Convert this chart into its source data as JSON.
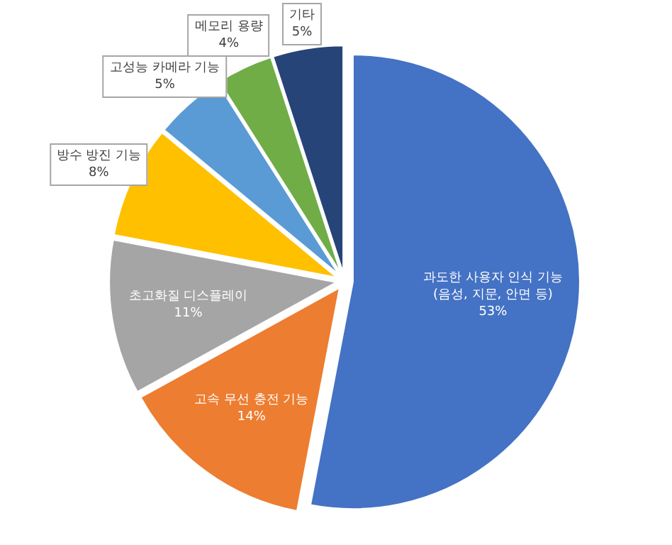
{
  "chart_data": {
    "type": "pie",
    "categories": [
      "과도한 사용자 인식 기능(음성, 지문, 안면 등)",
      "고속 무선 충전 기능",
      "초고화질 디스플레이",
      "방수 방진 기능",
      "고성능 카메라 기능",
      "메모리 용량",
      "기타"
    ],
    "values": [
      53,
      14,
      11,
      8,
      5,
      4,
      5
    ],
    "colors": [
      "#4472c4",
      "#ed7d31",
      "#a5a5a5",
      "#ffc000",
      "#5b9bd5",
      "#70ad47",
      "#264478"
    ],
    "value_labels": [
      "53%",
      "14%",
      "11%",
      "8%",
      "5%",
      "4%",
      "5%"
    ]
  }
}
